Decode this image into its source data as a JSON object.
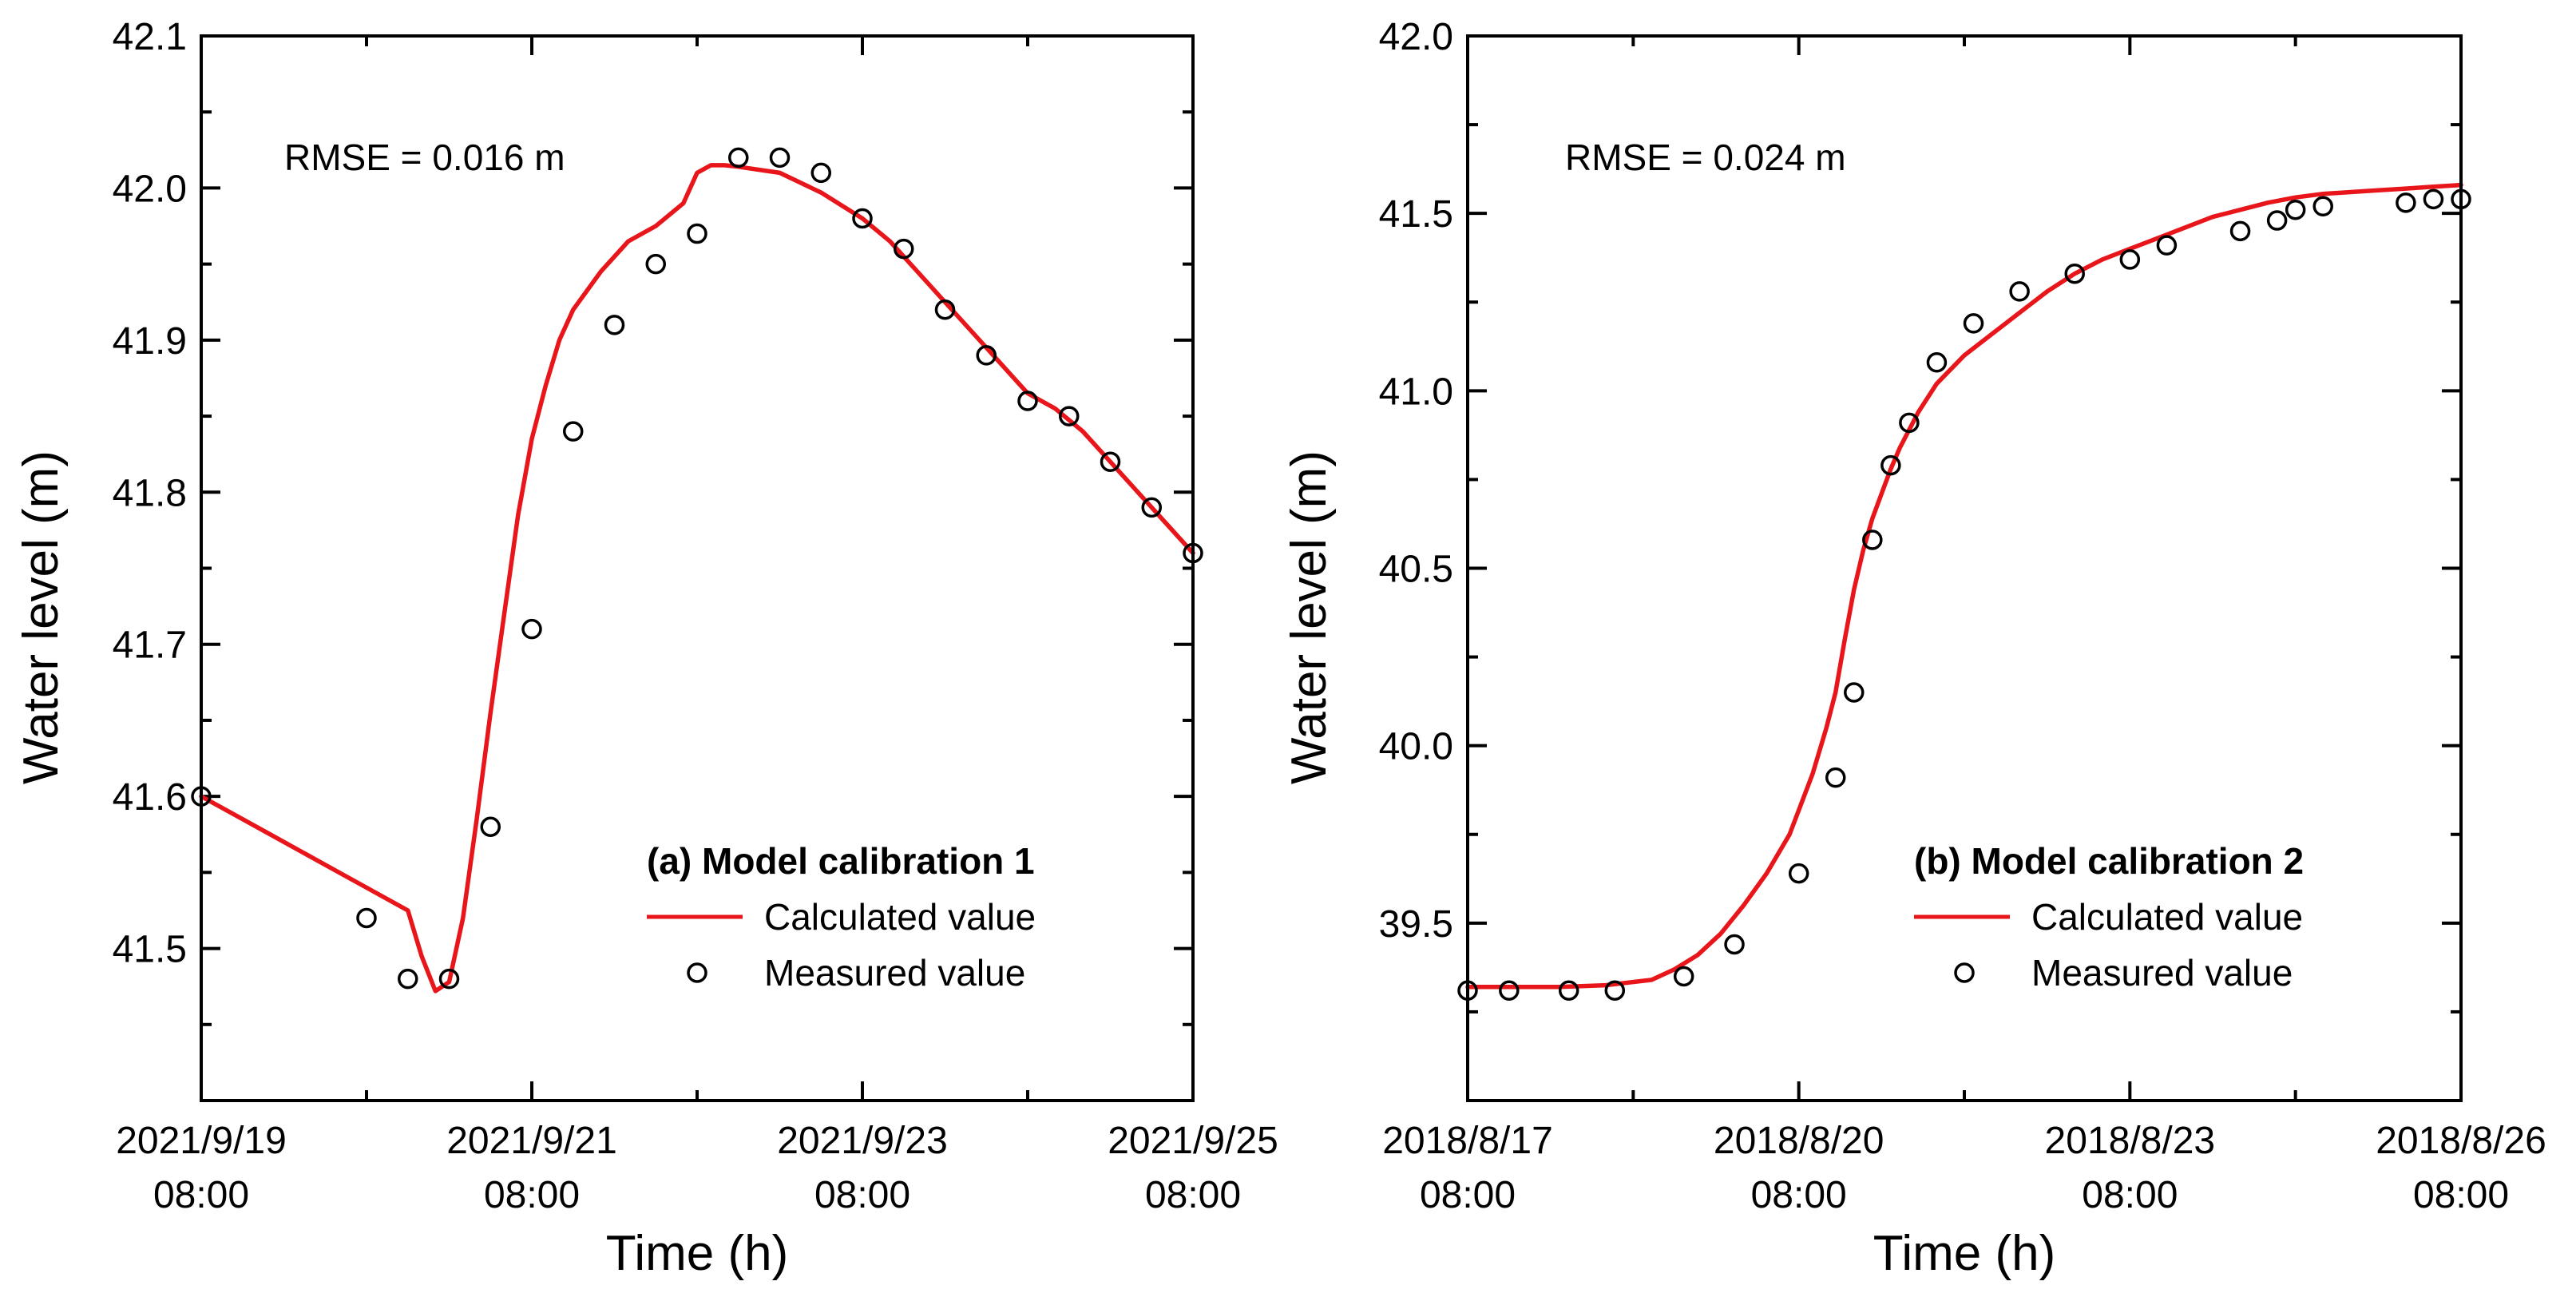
{
  "chart_data": [
    {
      "type": "line",
      "panel": "a",
      "xlabel": "Time (h)",
      "ylabel": "Water level (m)",
      "xlim": [
        0,
        144
      ],
      "ylim": [
        41.4,
        42.1
      ],
      "xticks": [
        0,
        48,
        96,
        144
      ],
      "xtick_labels": [
        [
          "2021/9/19",
          "08:00"
        ],
        [
          "2021/9/21",
          "08:00"
        ],
        [
          "2021/9/23",
          "08:00"
        ],
        [
          "2021/9/25",
          "08:00"
        ]
      ],
      "yticks": [
        41.5,
        41.6,
        41.7,
        41.8,
        41.9,
        42.0,
        42.1
      ],
      "ytick_labels": [
        "41.5",
        "41.6",
        "41.7",
        "41.8",
        "41.9",
        "42.0",
        "42.1"
      ],
      "annotation": "RMSE = 0.016 m",
      "legend_title": "(a) Model calibration 1",
      "series": [
        {
          "name": "Calculated value",
          "kind": "line",
          "color": "#e8161a",
          "x": [
            0,
            10,
            20,
            24,
            30,
            32,
            34,
            36,
            38,
            40,
            42,
            44,
            46,
            48,
            50,
            52,
            54,
            58,
            62,
            66,
            70,
            72,
            74,
            76,
            78,
            84,
            90,
            96,
            100,
            104,
            108,
            112,
            116,
            120,
            124,
            128,
            132,
            136,
            140,
            144
          ],
          "y": [
            41.6,
            41.575,
            41.55,
            41.54,
            41.525,
            41.495,
            41.472,
            41.478,
            41.52,
            41.585,
            41.655,
            41.72,
            41.785,
            41.835,
            41.87,
            41.9,
            41.92,
            41.945,
            41.965,
            41.975,
            41.99,
            42.01,
            42.015,
            42.015,
            42.014,
            42.01,
            41.997,
            41.98,
            41.965,
            41.945,
            41.925,
            41.905,
            41.885,
            41.865,
            41.855,
            41.84,
            41.82,
            41.8,
            41.78,
            41.76
          ]
        },
        {
          "name": "Measured value",
          "kind": "scatter",
          "marker": "open-circle",
          "x": [
            0,
            24,
            30,
            36,
            42,
            48,
            54,
            60,
            66,
            72,
            78,
            84,
            90,
            96,
            102,
            108,
            114,
            120,
            126,
            132,
            138,
            144
          ],
          "y": [
            41.6,
            41.52,
            41.48,
            41.48,
            41.58,
            41.71,
            41.84,
            41.91,
            41.95,
            41.97,
            42.02,
            42.02,
            42.01,
            41.98,
            41.96,
            41.92,
            41.89,
            41.86,
            41.85,
            41.82,
            41.79,
            41.76
          ]
        }
      ]
    },
    {
      "type": "line",
      "panel": "b",
      "xlabel": "Time (h)",
      "ylabel": "Water level (m)",
      "xlim": [
        0,
        216
      ],
      "ylim": [
        39.0,
        42.0
      ],
      "xticks": [
        0,
        72,
        144,
        216
      ],
      "xtick_labels": [
        [
          "2018/8/17",
          "08:00"
        ],
        [
          "2018/8/20",
          "08:00"
        ],
        [
          "2018/8/23",
          "08:00"
        ],
        [
          "2018/8/26",
          "08:00"
        ]
      ],
      "yticks": [
        39.5,
        40.0,
        40.5,
        41.0,
        41.5,
        42.0
      ],
      "ytick_labels": [
        "39.5",
        "40.0",
        "40.5",
        "41.0",
        "41.5",
        "42.0"
      ],
      "annotation": "RMSE = 0.024 m",
      "legend_title": "(b) Model calibration 2",
      "series": [
        {
          "name": "Calculated value",
          "kind": "line",
          "color": "#e8161a",
          "x": [
            0,
            10,
            20,
            30,
            40,
            45,
            50,
            55,
            60,
            65,
            70,
            75,
            78,
            80,
            82,
            84,
            86,
            88,
            90,
            92,
            94,
            98,
            102,
            108,
            114,
            120,
            126,
            132,
            138,
            144,
            150,
            156,
            162,
            168,
            174,
            180,
            186,
            192,
            198,
            204,
            210,
            216
          ],
          "y": [
            39.32,
            39.32,
            39.32,
            39.325,
            39.34,
            39.37,
            39.41,
            39.47,
            39.55,
            39.64,
            39.75,
            39.92,
            40.05,
            40.15,
            40.3,
            40.44,
            40.55,
            40.64,
            40.71,
            40.78,
            40.84,
            40.94,
            41.02,
            41.1,
            41.16,
            41.22,
            41.28,
            41.33,
            41.37,
            41.4,
            41.43,
            41.46,
            41.49,
            41.51,
            41.53,
            41.545,
            41.555,
            41.56,
            41.565,
            41.57,
            41.575,
            41.58
          ]
        },
        {
          "name": "Measured value",
          "kind": "scatter",
          "marker": "open-circle",
          "x": [
            0,
            9,
            22,
            32,
            47,
            58,
            72,
            80,
            84,
            88,
            92,
            96,
            102,
            110,
            120,
            132,
            144,
            152,
            168,
            176,
            180,
            186,
            204,
            210,
            216
          ],
          "y": [
            39.31,
            39.31,
            39.31,
            39.31,
            39.35,
            39.44,
            39.64,
            39.91,
            40.15,
            40.58,
            40.79,
            40.91,
            41.08,
            41.19,
            41.28,
            41.33,
            41.37,
            41.41,
            41.45,
            41.48,
            41.51,
            41.52,
            41.53,
            41.54,
            41.54
          ]
        }
      ]
    }
  ]
}
